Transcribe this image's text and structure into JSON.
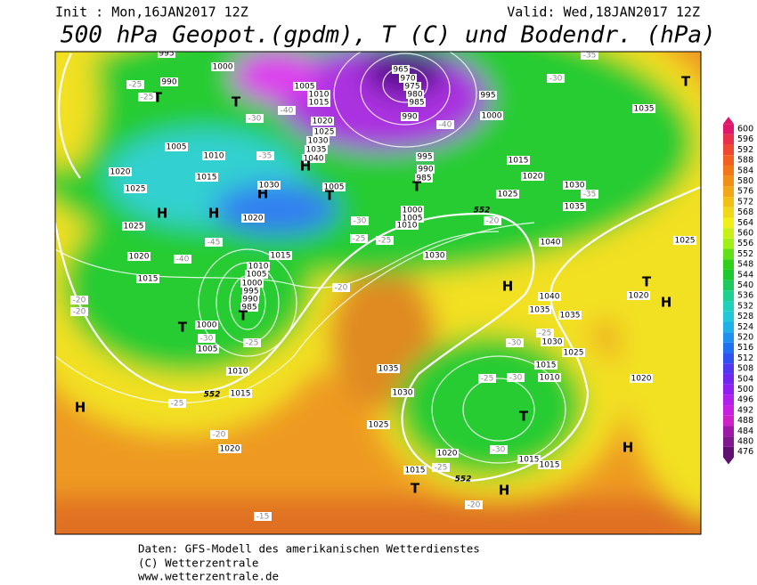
{
  "header": {
    "init": "Init : Mon,16JAN2017 12Z",
    "valid": "Valid: Wed,18JAN2017 12Z",
    "title": "500 hPa Geopot.(gpdm), T (C) und Bodendr. (hPa)"
  },
  "colorbar": {
    "labels": [
      600,
      596,
      592,
      588,
      584,
      580,
      576,
      572,
      568,
      564,
      560,
      556,
      552,
      548,
      544,
      540,
      536,
      532,
      528,
      524,
      520,
      516,
      512,
      508,
      504,
      500,
      496,
      492,
      488,
      484,
      480,
      476
    ],
    "colors": [
      "#e0186a",
      "#e8304a",
      "#ee4830",
      "#f06020",
      "#f07818",
      "#f09018",
      "#f0a818",
      "#f0c018",
      "#f0d818",
      "#f0f018",
      "#c8f018",
      "#a0f018",
      "#60e018",
      "#30d018",
      "#20c830",
      "#20c860",
      "#20d090",
      "#20d0b8",
      "#20c8d8",
      "#20b0e8",
      "#2090f0",
      "#2070f0",
      "#3050f0",
      "#5038f0",
      "#7028f0",
      "#9020f0",
      "#b020e8",
      "#c820e0",
      "#d020c8",
      "#a018a8",
      "#801890",
      "#601070"
    ]
  },
  "map": {
    "labels": [
      "995",
      "1000",
      "990",
      "T",
      "T",
      "1005",
      "1010",
      "1015",
      "965",
      "970",
      "975",
      "980",
      "985",
      "990",
      "995",
      "1000",
      "1020",
      "1025",
      "1030",
      "1035",
      "1040",
      "H",
      "1005",
      "1010",
      "1015",
      "1020",
      "1025",
      "H",
      "H",
      "H",
      "1030",
      "1020",
      "1025",
      "1020",
      "1015",
      "1005",
      "T",
      "995",
      "990",
      "985",
      "T",
      "1000",
      "1005",
      "1010",
      "1015",
      "1010",
      "1005",
      "1000",
      "995",
      "990",
      "985",
      "T",
      "T",
      "1000",
      "1005",
      "1010",
      "1015",
      "H",
      "1020",
      "1030",
      "H",
      "1040",
      "1035",
      "1030",
      "1025",
      "1020",
      "1015",
      "1035",
      "1040",
      "1035",
      "1035",
      "1030",
      "1025",
      "1020",
      "1035",
      "1030",
      "1025",
      "1015",
      "1010",
      "T",
      "1015",
      "1015",
      "1020",
      "1015",
      "T",
      "H",
      "H",
      "H",
      "T",
      "1020",
      "1025",
      "T",
      "-25",
      "-25",
      "-30",
      "-35",
      "-40",
      "-40",
      "-30",
      "-35",
      "-35",
      "-45",
      "-40",
      "-20",
      "-25",
      "-30",
      "-25",
      "-20",
      "-15",
      "-20",
      "-20",
      "-25",
      "-30",
      "-25",
      "-20",
      "-30",
      "-30",
      "-25",
      "-30",
      "-25",
      "-20",
      "-25",
      "552",
      "552",
      "552"
    ]
  },
  "footer": {
    "line1": "Daten: GFS-Modell des amerikanischen Wetterdienstes",
    "line2": "(C) Wetterzentrale",
    "line3": "www.wetterzentrale.de"
  }
}
